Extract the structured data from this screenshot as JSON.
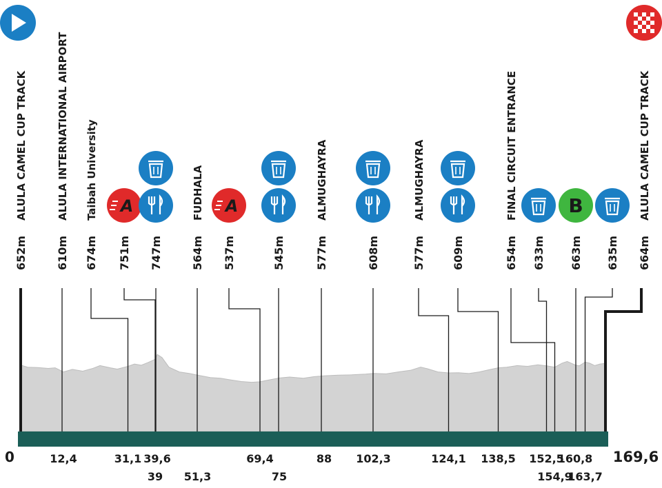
{
  "chart_data": {
    "type": "area",
    "x_range": [
      0,
      169.6
    ],
    "start_km": "0",
    "end_km": "169,6",
    "colors": {
      "profile_fill": "#d3d3d3",
      "profile_stroke": "#bdbdbd",
      "baseline": "#1b5e57",
      "lines": "#1a1a1a",
      "blue": "#1b7fc4",
      "red": "#e02a2a",
      "green": "#3fb63f"
    },
    "profile": [
      [
        0,
        653
      ],
      [
        2,
        640
      ],
      [
        5,
        638
      ],
      [
        8,
        632
      ],
      [
        10,
        636
      ],
      [
        12.4,
        610
      ],
      [
        15,
        626
      ],
      [
        18,
        615
      ],
      [
        21,
        633
      ],
      [
        23,
        650
      ],
      [
        26,
        636
      ],
      [
        28,
        628
      ],
      [
        31.1,
        645
      ],
      [
        33,
        660
      ],
      [
        35,
        652
      ],
      [
        37,
        670
      ],
      [
        39,
        690
      ],
      [
        39.6,
        720
      ],
      [
        41,
        700
      ],
      [
        43,
        640
      ],
      [
        46,
        610
      ],
      [
        49,
        600
      ],
      [
        51.3,
        590
      ],
      [
        55,
        575
      ],
      [
        58,
        570
      ],
      [
        61,
        560
      ],
      [
        64,
        550
      ],
      [
        67,
        545
      ],
      [
        69.4,
        548
      ],
      [
        72,
        560
      ],
      [
        75,
        572
      ],
      [
        78,
        578
      ],
      [
        82,
        570
      ],
      [
        85,
        580
      ],
      [
        88,
        586
      ],
      [
        92,
        590
      ],
      [
        96,
        592
      ],
      [
        100,
        596
      ],
      [
        102.3,
        601
      ],
      [
        106,
        598
      ],
      [
        110,
        612
      ],
      [
        113,
        620
      ],
      [
        116,
        640
      ],
      [
        118,
        630
      ],
      [
        121,
        610
      ],
      [
        124.1,
        604
      ],
      [
        127,
        605
      ],
      [
        130,
        600
      ],
      [
        133,
        610
      ],
      [
        136,
        625
      ],
      [
        138.5,
        636
      ],
      [
        141,
        640
      ],
      [
        144,
        650
      ],
      [
        147,
        645
      ],
      [
        150,
        655
      ],
      [
        152.5,
        648
      ],
      [
        154.9,
        640
      ],
      [
        157,
        665
      ],
      [
        158.5,
        676
      ],
      [
        160.8,
        654
      ],
      [
        162,
        648
      ],
      [
        163.7,
        672
      ],
      [
        165,
        665
      ],
      [
        166.5,
        650
      ],
      [
        168,
        660
      ],
      [
        169.6,
        664
      ]
    ],
    "markers": [
      {
        "km": 0,
        "name": "ALULA CAMEL CUP TRACK",
        "alt": "652m",
        "icons": [
          "start-icon"
        ],
        "bend": null
      },
      {
        "km": 12.4,
        "name": "ALULA INTERNATIONAL AIRPORT",
        "alt": "610m",
        "icons": [],
        "bend": null
      },
      {
        "km": 31.1,
        "name": "Taibah University",
        "alt": "674m",
        "icons": [],
        "bend": 0
      },
      {
        "km": 39,
        "name": "",
        "alt": "751m",
        "icons": [
          "sprint-a-icon"
        ],
        "bend": 0
      },
      {
        "km": 39.6,
        "name": "",
        "alt": "747m",
        "icons": [
          "feed-icon",
          "bin-icon"
        ],
        "bend": null
      },
      {
        "km": 51.3,
        "name": "FUDHALA",
        "alt": "564m",
        "icons": [],
        "bend": null
      },
      {
        "km": 69.4,
        "name": "",
        "alt": "537m",
        "icons": [
          "sprint-a-icon"
        ],
        "bend": 0
      },
      {
        "km": 75,
        "name": "",
        "alt": "545m",
        "icons": [
          "feed-icon",
          "bin-icon"
        ],
        "bend": null
      },
      {
        "km": 88,
        "name": "ALMUGHAYRA",
        "alt": "577m",
        "icons": [],
        "bend": null
      },
      {
        "km": 102.3,
        "name": "",
        "alt": "608m",
        "icons": [
          "feed-icon",
          "bin-icon"
        ],
        "bend": null
      },
      {
        "km": 124.1,
        "name": "ALMUGHAYRA",
        "alt": "577m",
        "icons": [],
        "bend": 0
      },
      {
        "km": 138.5,
        "name": "",
        "alt": "609m",
        "icons": [
          "feed-icon",
          "bin-icon"
        ],
        "bend": 0
      },
      {
        "km": 154.9,
        "name": "FINAL CIRCUIT ENTRANCE",
        "alt": "654m",
        "icons": [],
        "bend": 0
      },
      {
        "km": 152.5,
        "name": "",
        "alt": "633m",
        "icons": [
          "bin-icon"
        ],
        "bend": 0
      },
      {
        "km": 160.8,
        "name": "",
        "alt": "663m",
        "icons": [
          "bonus-b-icon"
        ],
        "bend": null
      },
      {
        "km": 163.7,
        "name": "",
        "alt": "635m",
        "icons": [
          "bin-icon"
        ],
        "bend": 0
      },
      {
        "km": 169.6,
        "name": "ALULA CAMEL CUP TRACK",
        "alt": "664m",
        "icons": [
          "finish-icon"
        ],
        "bend": null
      }
    ],
    "km_labels_row1": [
      "12,4",
      "31,1",
      "39,6",
      "69,4",
      "88",
      "102,3",
      "124,1",
      "138,5",
      "152,5",
      "160,8"
    ],
    "km_labels_row1_pos": [
      12.4,
      31.1,
      39.6,
      69.4,
      88,
      102.3,
      124.1,
      138.5,
      152.5,
      160.8
    ],
    "km_labels_row2": [
      "39",
      "51,3",
      "75",
      "154,9",
      "163,7"
    ],
    "km_labels_row2_pos": [
      39,
      51.3,
      75,
      154.9,
      163.7
    ],
    "icon_letters": {
      "sprint": "A",
      "bonus": "B"
    }
  }
}
